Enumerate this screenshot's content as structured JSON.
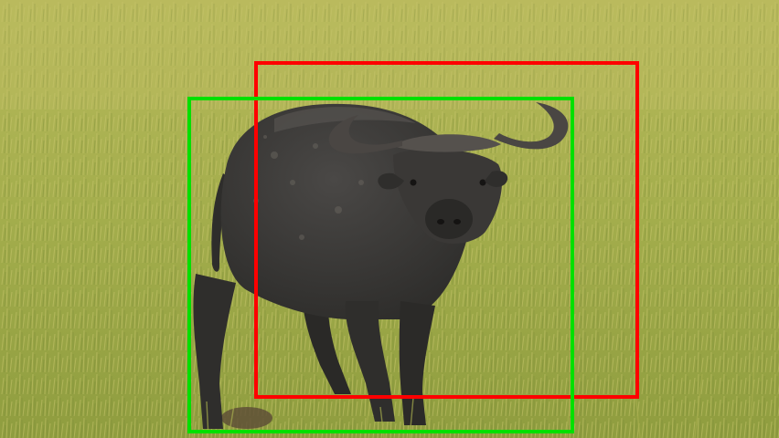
{
  "scene": {
    "subject": "buffalo",
    "setting": "grassland",
    "colors": {
      "grass_light": "#b8bd5e",
      "grass_mid": "#9aa84a",
      "grass_dark": "#6f7f2f",
      "buffalo_body": "#3f3d3b",
      "buffalo_shadow": "#2b2a28",
      "horn": "#4a4643",
      "mud": "#5b4a36"
    }
  },
  "boxes": {
    "red": {
      "color": "#ff0000"
    },
    "green": {
      "color": "#00e000"
    }
  }
}
